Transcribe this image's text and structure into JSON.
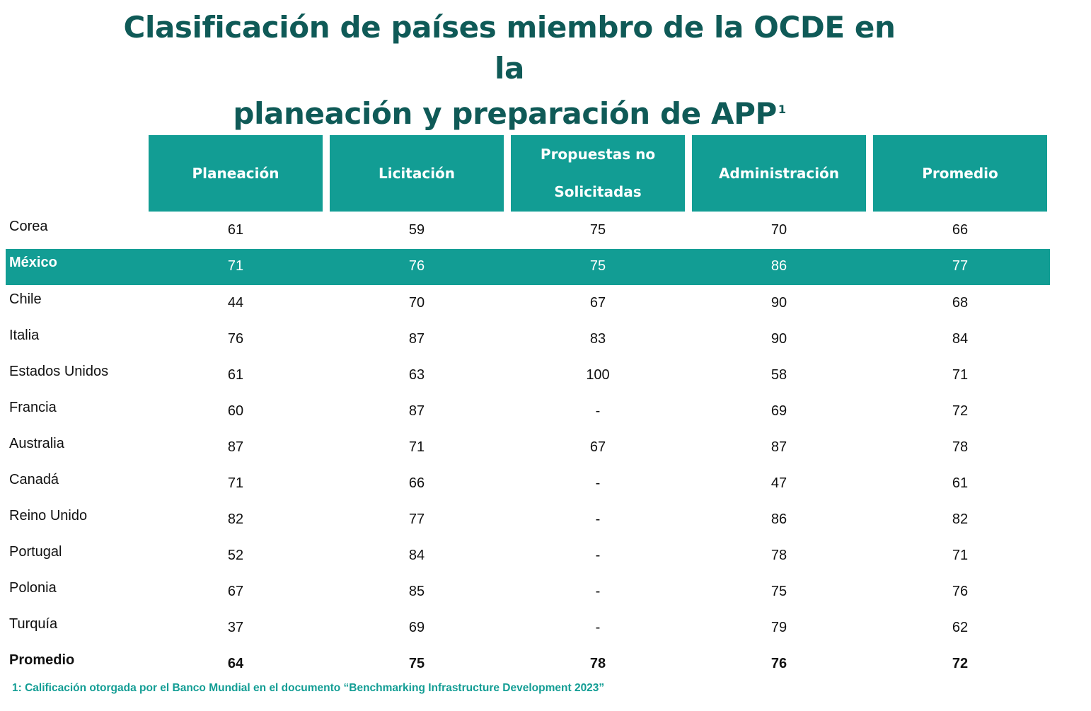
{
  "title": {
    "line1": "Clasificación de países miembro de la OCDE en la",
    "line2": "planeación y preparación de APP",
    "superscript": "1"
  },
  "columns": [
    "Planeación",
    "Licitación",
    "Propuestas no Solicitadas",
    "Administración",
    "Promedio"
  ],
  "columns_split": {
    "c3_line1": "Propuestas no",
    "c3_line2": "Solicitadas"
  },
  "rows": [
    {
      "country": "Corea",
      "values": [
        "61",
        "59",
        "75",
        "70",
        "66"
      ]
    },
    {
      "country": "México",
      "values": [
        "71",
        "76",
        "75",
        "86",
        "77"
      ]
    },
    {
      "country": "Chile",
      "values": [
        "44",
        "70",
        "67",
        "90",
        "68"
      ]
    },
    {
      "country": "Italia",
      "values": [
        "76",
        "87",
        "83",
        "90",
        "84"
      ]
    },
    {
      "country": "Estados Unidos",
      "values": [
        "61",
        "63",
        "100",
        "58",
        "71"
      ]
    },
    {
      "country": "Francia",
      "values": [
        "60",
        "87",
        "-",
        "69",
        "72"
      ]
    },
    {
      "country": "Australia",
      "values": [
        "87",
        "71",
        "67",
        "87",
        "78"
      ]
    },
    {
      "country": "Canadá",
      "values": [
        "71",
        "66",
        "-",
        "47",
        "61"
      ]
    },
    {
      "country": "Reino Unido",
      "values": [
        "82",
        "77",
        "-",
        "86",
        "82"
      ]
    },
    {
      "country": "Portugal",
      "values": [
        "52",
        "84",
        "-",
        "78",
        "71"
      ]
    },
    {
      "country": "Polonia",
      "values": [
        "67",
        "85",
        "-",
        "75",
        "76"
      ]
    },
    {
      "country": "Turquía",
      "values": [
        "37",
        "69",
        "-",
        "79",
        "62"
      ]
    }
  ],
  "average": {
    "label": "Promedio",
    "values": [
      "64",
      "75",
      "78",
      "76",
      "72"
    ]
  },
  "footnote": "1: Calificación otorgada por el Banco Mundial en el documento “Benchmarking Infrastructure Development 2023”",
  "colors": {
    "title": "#0f5a57",
    "accent": "#129d94"
  }
}
